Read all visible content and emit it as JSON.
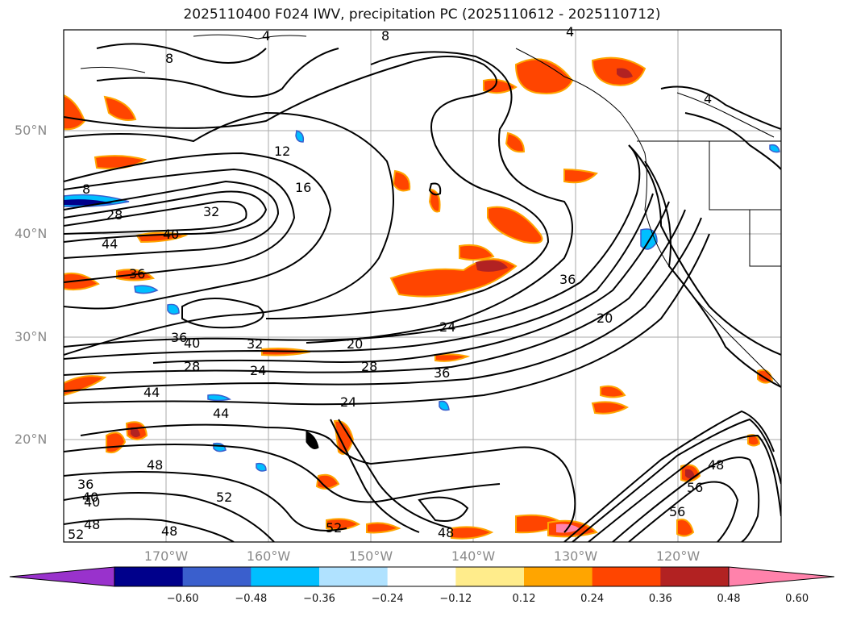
{
  "title": "2025110400 F024 IWV, precipitation PC (2025110612 - 2025110712)",
  "latitude_labels": [
    "50°N",
    "40°N",
    "30°N",
    "20°N"
  ],
  "longitude_labels": [
    "170°W",
    "160°W",
    "150°W",
    "140°W",
    "130°W",
    "120°W"
  ],
  "contour_labels": [
    "8",
    "4",
    "8",
    "4",
    "12",
    "16",
    "32",
    "28",
    "8",
    "40",
    "44",
    "36",
    "36",
    "40",
    "32",
    "24",
    "20",
    "28",
    "28",
    "36",
    "24",
    "44",
    "44",
    "24",
    "20",
    "36",
    "40",
    "48",
    "52",
    "52",
    "48",
    "36",
    "40",
    "48",
    "56",
    "48",
    "4",
    "56",
    "48",
    "52"
  ],
  "colorbar": {
    "ticks": [
      "−0.60",
      "−0.48",
      "−0.36",
      "−0.24",
      "−0.12",
      "0.12",
      "0.24",
      "0.36",
      "0.48",
      "0.60"
    ],
    "colors": [
      "#9932cc",
      "#00008b",
      "#3a5fcd",
      "#00bfff",
      "#b0e2ff",
      "#ffffff",
      "#ffec8b",
      "#ffa500",
      "#ff4500",
      "#b22222",
      "#ff82ab"
    ]
  }
}
